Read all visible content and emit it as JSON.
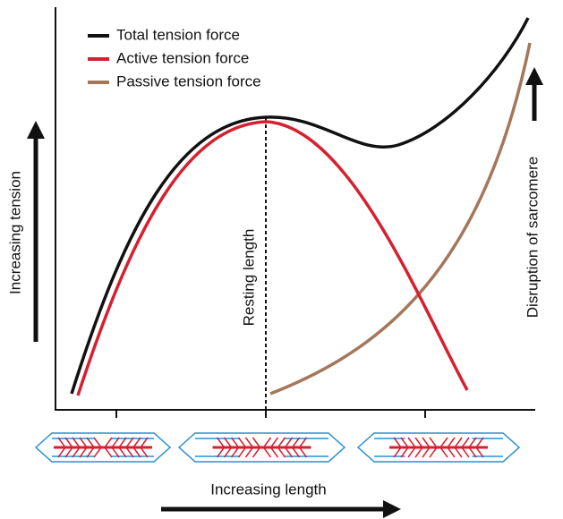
{
  "legend": [
    {
      "label": "Total tension force",
      "color": "#111111"
    },
    {
      "label": "Active tension force",
      "color": "#d6202f"
    },
    {
      "label": "Passive tension force",
      "color": "#a5775a"
    }
  ],
  "y_axis_label": "Increasing tension",
  "x_axis_label": "Increasing length",
  "annotations": {
    "resting_length": "Resting length",
    "disruption": "Disruption of sarcomere"
  }
}
